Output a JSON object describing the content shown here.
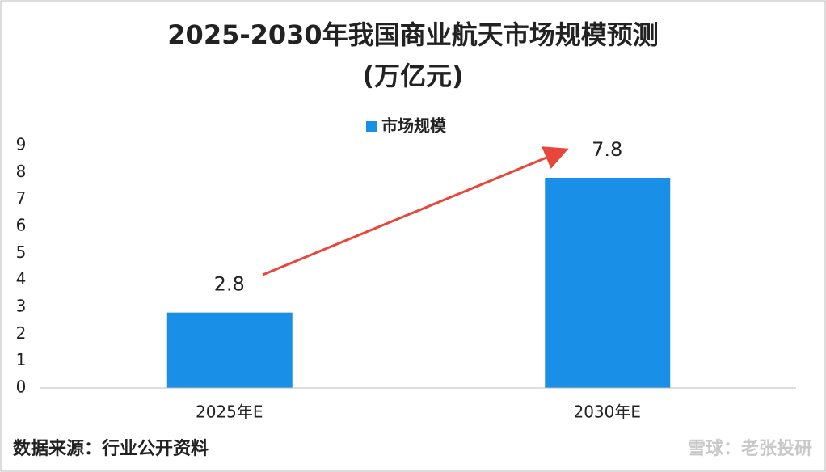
{
  "chart_data": {
    "type": "bar",
    "title": "2025-2030年我国商业航天市场规模预测",
    "subtitle": "(万亿元)",
    "categories": [
      "2025年E",
      "2030年E"
    ],
    "series": [
      {
        "name": "市场规模",
        "color": "#1a8fe8",
        "values": [
          2.8,
          7.8
        ]
      }
    ],
    "ylim": [
      0,
      9
    ],
    "yticks": [
      0,
      1,
      2,
      3,
      4,
      5,
      6,
      7,
      8,
      9
    ],
    "grid": false,
    "legend": "top",
    "source": "数据来源：行业公开资料",
    "watermark": "雪球：老张投研"
  }
}
